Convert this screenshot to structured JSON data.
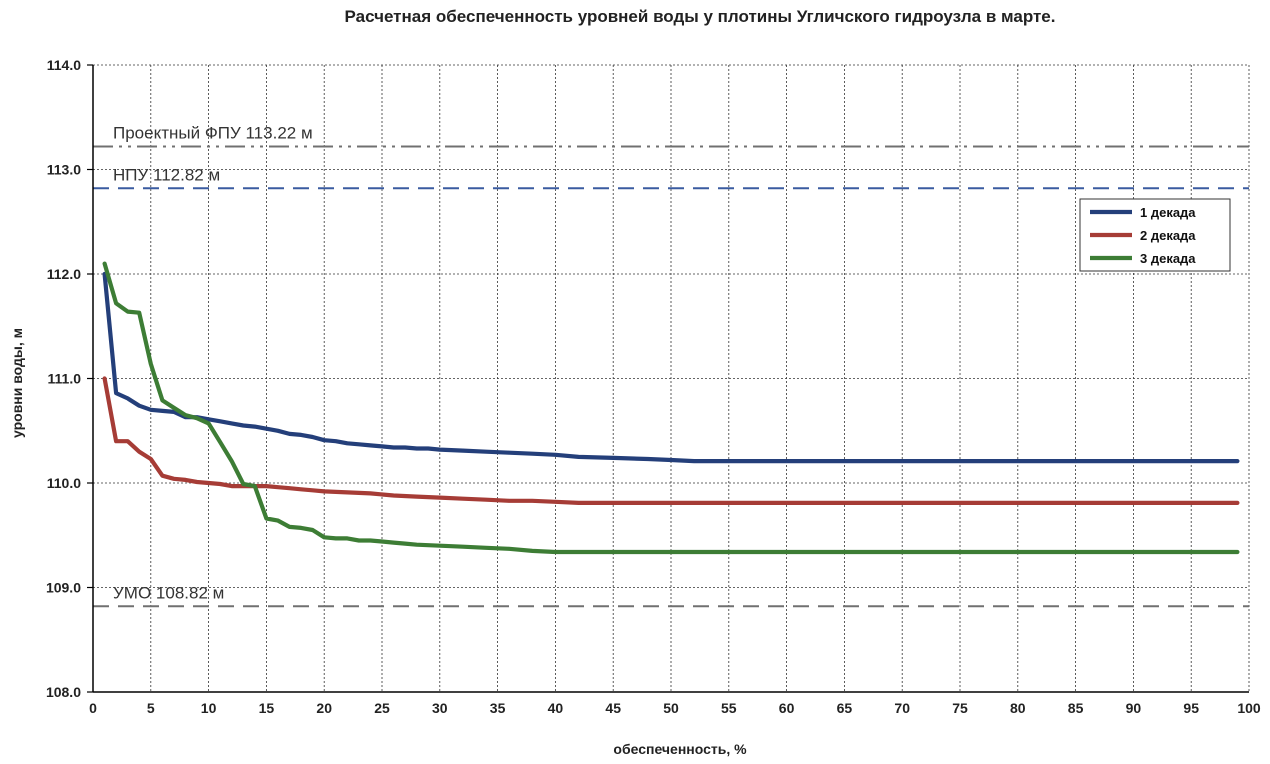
{
  "chart_data": {
    "type": "line",
    "title": "Расчетная обеспеченность уровней воды у плотины Угличского гидроузла в марте.",
    "xlabel": "обеспеченность,  %",
    "ylabel": "уровни воды, м",
    "xlim": [
      0,
      100
    ],
    "ylim": [
      108.0,
      114.0
    ],
    "x_ticks": [
      "0",
      "5",
      "10",
      "15",
      "20",
      "25",
      "30",
      "35",
      "40",
      "45",
      "50",
      "55",
      "60",
      "65",
      "70",
      "75",
      "80",
      "85",
      "90",
      "95",
      "100"
    ],
    "y_ticks": [
      "108.0",
      "109.0",
      "110.0",
      "111.0",
      "112.0",
      "113.0",
      "114.0"
    ],
    "grid": true,
    "legend_position": "top-right",
    "reference_lines": [
      {
        "name": "Проектный ФПУ 113.22 м",
        "value": 113.22,
        "color": "#707070",
        "style": "dash-dot-dot"
      },
      {
        "name": "НПУ 112.82 м",
        "value": 112.82,
        "color": "#3a5ba0",
        "style": "dashed"
      },
      {
        "name": "УМО 108.82 м",
        "value": 108.82,
        "color": "#707070",
        "style": "dashed"
      }
    ],
    "series": [
      {
        "name": "1 декада",
        "color": "#243f7a",
        "x": [
          1,
          2,
          3,
          4,
          5,
          6,
          7,
          8,
          9,
          10,
          11,
          12,
          13,
          14,
          15,
          16,
          17,
          18,
          19,
          20,
          21,
          22,
          23,
          24,
          25,
          26,
          27,
          28,
          29,
          30,
          32,
          34,
          36,
          38,
          40,
          42,
          45,
          48,
          50,
          52,
          55,
          60,
          70,
          80,
          90,
          99
        ],
        "values": [
          112.0,
          110.86,
          110.81,
          110.74,
          110.7,
          110.69,
          110.68,
          110.63,
          110.63,
          110.61,
          110.59,
          110.57,
          110.55,
          110.54,
          110.52,
          110.5,
          110.47,
          110.46,
          110.44,
          110.41,
          110.4,
          110.38,
          110.37,
          110.36,
          110.35,
          110.34,
          110.34,
          110.33,
          110.33,
          110.32,
          110.31,
          110.3,
          110.29,
          110.28,
          110.27,
          110.25,
          110.24,
          110.23,
          110.22,
          110.21,
          110.21,
          110.21,
          110.21,
          110.21,
          110.21,
          110.21
        ]
      },
      {
        "name": "2 декада",
        "color": "#a63c36",
        "x": [
          1,
          2,
          3,
          4,
          5,
          6,
          7,
          8,
          9,
          10,
          11,
          12,
          13,
          14,
          15,
          16,
          17,
          18,
          19,
          20,
          22,
          24,
          26,
          28,
          30,
          32,
          34,
          36,
          38,
          40,
          42,
          44,
          50,
          60,
          70,
          80,
          90,
          99
        ],
        "values": [
          111.0,
          110.4,
          110.4,
          110.3,
          110.23,
          110.07,
          110.04,
          110.03,
          110.01,
          110.0,
          109.99,
          109.97,
          109.97,
          109.97,
          109.97,
          109.96,
          109.95,
          109.94,
          109.93,
          109.92,
          109.91,
          109.9,
          109.88,
          109.87,
          109.86,
          109.85,
          109.84,
          109.83,
          109.83,
          109.82,
          109.81,
          109.81,
          109.81,
          109.81,
          109.81,
          109.81,
          109.81,
          109.81
        ]
      },
      {
        "name": "3 декада",
        "color": "#3d7d35",
        "x": [
          1,
          2,
          3,
          4,
          5,
          6,
          7,
          8,
          9,
          10,
          11,
          12,
          13,
          14,
          15,
          16,
          17,
          18,
          19,
          20,
          21,
          22,
          23,
          24,
          25,
          26,
          27,
          28,
          30,
          32,
          34,
          36,
          38,
          40,
          45,
          50,
          60,
          70,
          80,
          90,
          99
        ],
        "values": [
          112.1,
          111.72,
          111.64,
          111.63,
          111.14,
          110.79,
          110.72,
          110.65,
          110.62,
          110.57,
          110.39,
          110.21,
          109.99,
          109.97,
          109.66,
          109.64,
          109.58,
          109.57,
          109.55,
          109.48,
          109.47,
          109.47,
          109.45,
          109.45,
          109.44,
          109.43,
          109.42,
          109.41,
          109.4,
          109.39,
          109.38,
          109.37,
          109.35,
          109.34,
          109.34,
          109.34,
          109.34,
          109.34,
          109.34,
          109.34,
          109.34
        ]
      }
    ]
  }
}
